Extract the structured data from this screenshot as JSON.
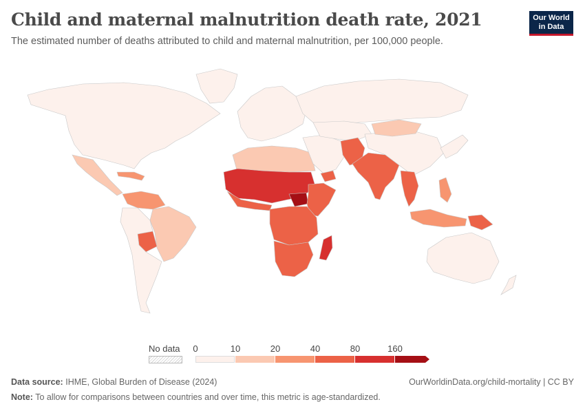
{
  "header": {
    "title": "Child and maternal malnutrition death rate, 2021",
    "subtitle": "The estimated number of deaths attributed to child and maternal malnutrition, per 100,000 people."
  },
  "logo": {
    "line1": "Our World",
    "line2": "in Data"
  },
  "legend": {
    "no_data_label": "No data",
    "ticks": [
      "0",
      "10",
      "20",
      "40",
      "80",
      "160"
    ],
    "bins": [
      {
        "from": 0,
        "to": 10,
        "color": "#fdf1ec"
      },
      {
        "from": 10,
        "to": 20,
        "color": "#fbc9b2"
      },
      {
        "from": 20,
        "to": 40,
        "color": "#f79570"
      },
      {
        "from": 40,
        "to": 80,
        "color": "#ec6247"
      },
      {
        "from": 80,
        "to": 160,
        "color": "#d7302f"
      },
      {
        "from": 160,
        "to": null,
        "color": "#a50f15"
      }
    ]
  },
  "footer": {
    "source_label": "Data source:",
    "source_text": "IHME, Global Burden of Disease (2024)",
    "url_text": "OurWorldinData.org/child-mortality | CC BY",
    "note_label": "Note:",
    "note_text": "To allow for comparisons between countries and over time, this metric is age-standardized."
  },
  "map_regions": [
    {
      "name": "north-america",
      "color": "#fdf1ec"
    },
    {
      "name": "greenland",
      "color": "#fdf1ec"
    },
    {
      "name": "mexico-central-america",
      "color": "#fbc9b2"
    },
    {
      "name": "caribbean",
      "color": "#f79570"
    },
    {
      "name": "south-america-north",
      "color": "#f79570"
    },
    {
      "name": "brazil",
      "color": "#fbc9b2"
    },
    {
      "name": "bolivia",
      "color": "#ec6247"
    },
    {
      "name": "south-america-south",
      "color": "#fdf1ec"
    },
    {
      "name": "europe",
      "color": "#fdf1ec"
    },
    {
      "name": "russia",
      "color": "#fdf1ec"
    },
    {
      "name": "north-africa",
      "color": "#fbc9b2"
    },
    {
      "name": "sahel",
      "color": "#d7302f"
    },
    {
      "name": "west-africa-coast",
      "color": "#ec6247"
    },
    {
      "name": "south-sudan",
      "color": "#a50f15"
    },
    {
      "name": "horn-of-africa",
      "color": "#ec6247"
    },
    {
      "name": "central-africa",
      "color": "#ec6247"
    },
    {
      "name": "southern-africa",
      "color": "#ec6247"
    },
    {
      "name": "madagascar",
      "color": "#d7302f"
    },
    {
      "name": "middle-east",
      "color": "#fdf1ec"
    },
    {
      "name": "yemen",
      "color": "#ec6247"
    },
    {
      "name": "central-asia",
      "color": "#fdf1ec"
    },
    {
      "name": "afghanistan-pakistan",
      "color": "#ec6247"
    },
    {
      "name": "india",
      "color": "#ec6247"
    },
    {
      "name": "china",
      "color": "#fdf1ec"
    },
    {
      "name": "mongolia",
      "color": "#fbc9b2"
    },
    {
      "name": "southeast-asia",
      "color": "#ec6247"
    },
    {
      "name": "indonesia",
      "color": "#f79570"
    },
    {
      "name": "papua-new-guinea",
      "color": "#ec6247"
    },
    {
      "name": "philippines",
      "color": "#f79570"
    },
    {
      "name": "japan-korea",
      "color": "#fdf1ec"
    },
    {
      "name": "australia",
      "color": "#fdf1ec"
    },
    {
      "name": "new-zealand",
      "color": "#fdf1ec"
    }
  ]
}
